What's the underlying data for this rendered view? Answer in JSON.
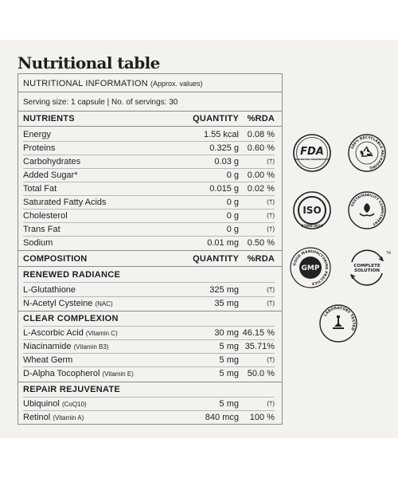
{
  "heading": "Nutritional table",
  "info": {
    "title": "NUTRITIONAL INFORMATION",
    "subtitle": "(Approx. values)"
  },
  "serving": "Serving size: 1 capsule | No. of servings: 30",
  "nutrients": {
    "headers": [
      "NUTRIENTS",
      "QUANTITY",
      "%RDA"
    ],
    "rows": [
      {
        "name": "Energy",
        "qty": "1.55 kcal",
        "rda": "0.08 %"
      },
      {
        "name": "Proteins",
        "qty": "0.325 g",
        "rda": "0.60 %"
      },
      {
        "name": "Carbohydrates",
        "qty": "0.03 g",
        "rda": "(†)"
      },
      {
        "name": "Added Sugar*",
        "qty": "0 g",
        "rda": "0.00 %"
      },
      {
        "name": "Total Fat",
        "qty": "0.015 g",
        "rda": "0.02 %"
      },
      {
        "name": "Saturated Fatty Acids",
        "qty": "0 g",
        "rda": "(†)"
      },
      {
        "name": "Cholesterol",
        "qty": "0 g",
        "rda": "(†)"
      },
      {
        "name": "Trans Fat",
        "qty": "0 g",
        "rda": "(†)"
      },
      {
        "name": "Sodium",
        "qty": "0.01 mg",
        "rda": "0.50 %"
      }
    ]
  },
  "composition": {
    "headers": [
      "COMPOSITION",
      "QUANTITY",
      "%RDA"
    ],
    "sections": [
      {
        "title": "RENEWED RADIANCE",
        "rows": [
          {
            "name": "L-Glutathione",
            "note": "",
            "qty": "325 mg",
            "rda": "(†)"
          },
          {
            "name": "N-Acetyl Cysteine",
            "note": "(NAC)",
            "qty": "35 mg",
            "rda": "(†)"
          }
        ]
      },
      {
        "title": "CLEAR COMPLEXION",
        "rows": [
          {
            "name": "L-Ascorbic Acid",
            "note": "(Vitamin C)",
            "qty": "30 mg",
            "rda": "46.15 %"
          },
          {
            "name": "Niacinamide",
            "note": "(Vitamin B3)",
            "qty": "5 mg",
            "rda": "35.71%"
          },
          {
            "name": "Wheat Germ",
            "note": "",
            "qty": "5 mg",
            "rda": "(†)"
          },
          {
            "name": "D-Alpha Tocopherol",
            "note": "(Vitamin E)",
            "qty": "5 mg",
            "rda": "50.0 %"
          }
        ]
      },
      {
        "title": "REPAIR REJUVENATE",
        "rows": [
          {
            "name": "Ubiquinol",
            "note": "(CoQ10)",
            "qty": "5 mg",
            "rda": "(†)"
          },
          {
            "name": "Retinol",
            "note": "(Vitamin A)",
            "qty": "840 mcg",
            "rda": "100 %"
          }
        ]
      }
    ]
  },
  "badges": {
    "fda": {
      "big": "FDA",
      "small": "APPROVED INGREDIENTS",
      "icon": "fda-badge-icon"
    },
    "recyclable": {
      "ring": "100% RECYCLABLE PACKAGING",
      "icon": "recycle-icon"
    },
    "iso": {
      "big": "ISO",
      "small": "22000:2018",
      "icon": "iso-badge-icon"
    },
    "sustainability": {
      "ring": "SUSTAINABILITY COMMITMENT",
      "icon": "leaf-hands-icon"
    },
    "gmp": {
      "big": "GMP",
      "ring": "GOOD MANUFACTURING PRACTICE",
      "icon": "gmp-badge-icon"
    },
    "complete": {
      "line1": "COMPLETE",
      "line2": "SOLUTION",
      "tm": "TM",
      "icon": "complete-solution-icon"
    },
    "lab": {
      "ring": "LABORATORY TESTED",
      "icon": "microscope-icon"
    }
  }
}
